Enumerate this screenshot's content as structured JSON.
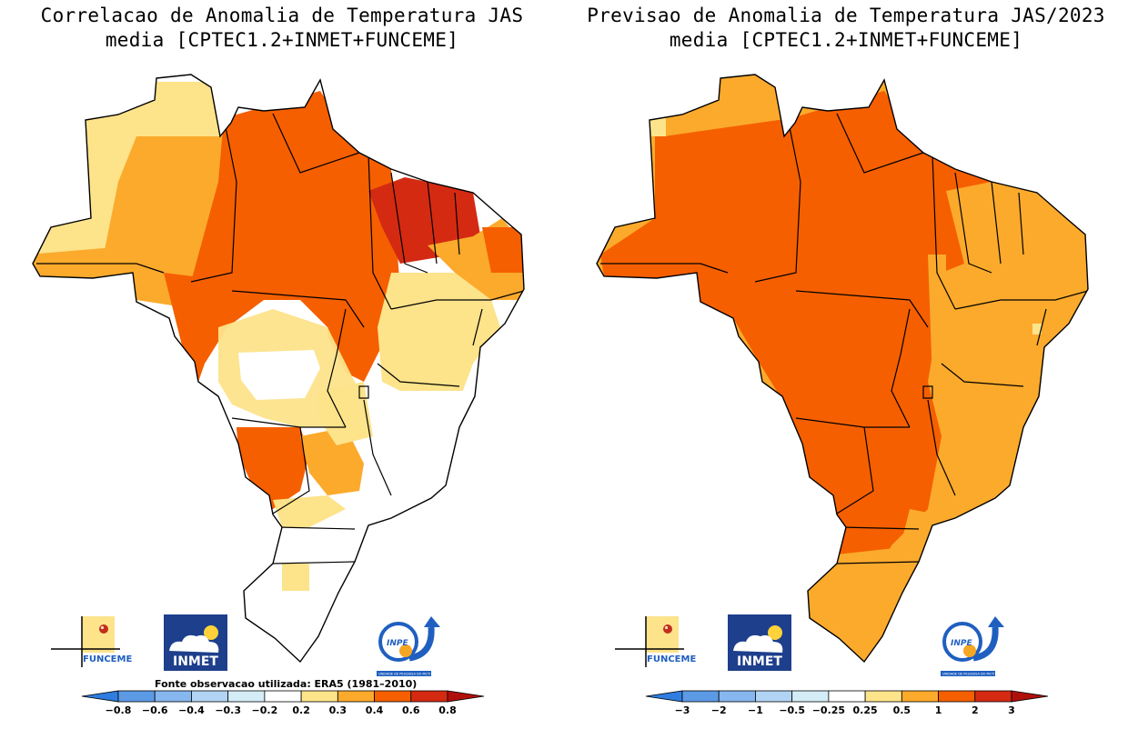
{
  "panels": [
    {
      "title_line1": "Correlacao de Anomalia de Temperatura JAS",
      "title_line2": "media [CPTEC1.2+INMET+FUNCEME]",
      "source_note": "Fonte observacao utilizada: ERA5 (1981–2010)",
      "colorbar": {
        "labels": [
          "-0.8",
          "-0.6",
          "-0.4",
          "-0.3",
          "-0.2",
          "0.2",
          "0.3",
          "0.4",
          "0.6",
          "0.8"
        ],
        "colors": [
          "#2f7de0",
          "#5c9ae6",
          "#86b7ee",
          "#b2d4f4",
          "#d4ecf6",
          "#ffffff",
          "#fde38a",
          "#fbaa2c",
          "#f55f00",
          "#d42a12",
          "#b0100c"
        ]
      }
    },
    {
      "title_line1": "Previsao de Anomalia de Temperatura JAS/2023",
      "title_line2": "media [CPTEC1.2+INMET+FUNCEME]",
      "colorbar": {
        "labels": [
          "-3",
          "-2",
          "-1",
          "-0.5",
          "-0.25",
          "0.25",
          "0.5",
          "1",
          "2",
          "3"
        ],
        "colors": [
          "#2f7de0",
          "#5c9ae6",
          "#86b7ee",
          "#b2d4f4",
          "#d4ecf6",
          "#ffffff",
          "#fde38a",
          "#fbaa2c",
          "#f55f00",
          "#d42a12",
          "#b0100c"
        ]
      }
    }
  ],
  "logos": {
    "funceme": "FUNCEME",
    "inmet": "INMET",
    "inpe": "INPE",
    "inpe_sub": "UNIDADE DE PESQUISA DO MCTI"
  }
}
